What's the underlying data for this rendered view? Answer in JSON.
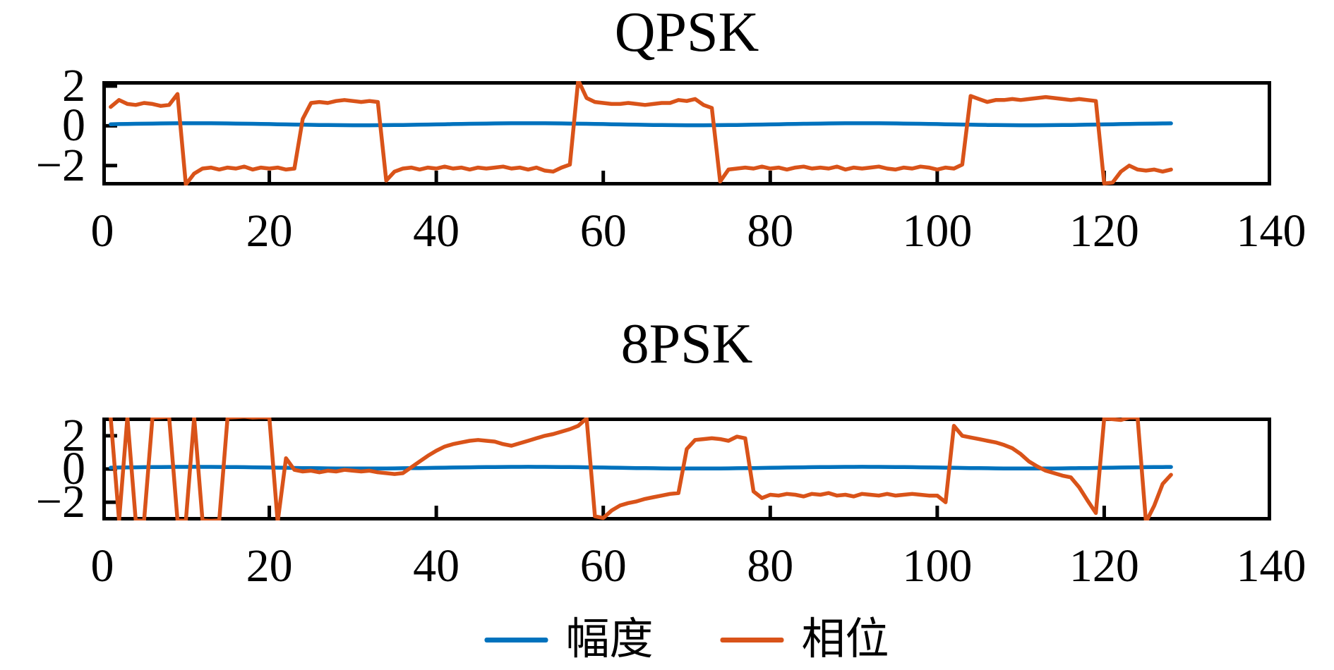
{
  "figure": {
    "background": "#ffffff",
    "axis_color": "#000000"
  },
  "legend": {
    "items": [
      {
        "label": "幅度",
        "color": "#0072BD"
      },
      {
        "label": "相位",
        "color": "#D95319"
      }
    ]
  },
  "chart_data": [
    {
      "type": "line",
      "title": "QPSK",
      "xlabel": "",
      "ylabel": "",
      "xlim": [
        0,
        140
      ],
      "ylim": [
        -3.0,
        2.25
      ],
      "xticks": [
        0,
        20,
        40,
        60,
        80,
        100,
        120,
        140
      ],
      "yticks": [
        2,
        0,
        -2
      ],
      "grid": false,
      "legend_position": "below-figure",
      "x_start": 1,
      "x_step": 1,
      "series": [
        {
          "name": "幅度",
          "color": "#0072BD",
          "values": [
            0.08,
            0.088,
            0.095,
            0.103,
            0.109,
            0.115,
            0.121,
            0.125,
            0.128,
            0.129,
            0.13,
            0.129,
            0.128,
            0.125,
            0.121,
            0.115,
            0.109,
            0.103,
            0.095,
            0.088,
            0.08,
            0.072,
            0.065,
            0.057,
            0.051,
            0.045,
            0.039,
            0.035,
            0.032,
            0.031,
            0.03,
            0.031,
            0.032,
            0.035,
            0.039,
            0.045,
            0.051,
            0.057,
            0.065,
            0.072,
            0.08,
            0.088,
            0.095,
            0.103,
            0.109,
            0.115,
            0.121,
            0.125,
            0.128,
            0.129,
            0.13,
            0.129,
            0.128,
            0.125,
            0.121,
            0.115,
            0.109,
            0.103,
            0.095,
            0.088,
            0.08,
            0.072,
            0.065,
            0.057,
            0.051,
            0.045,
            0.039,
            0.035,
            0.032,
            0.031,
            0.03,
            0.031,
            0.032,
            0.035,
            0.039,
            0.045,
            0.051,
            0.057,
            0.065,
            0.072,
            0.08,
            0.088,
            0.095,
            0.103,
            0.109,
            0.115,
            0.121,
            0.125,
            0.128,
            0.129,
            0.13,
            0.129,
            0.128,
            0.125,
            0.121,
            0.115,
            0.109,
            0.103,
            0.095,
            0.088,
            0.08,
            0.072,
            0.065,
            0.057,
            0.051,
            0.045,
            0.039,
            0.035,
            0.032,
            0.031,
            0.03,
            0.031,
            0.032,
            0.035,
            0.039,
            0.045,
            0.051,
            0.057,
            0.065,
            0.072,
            0.08,
            0.088,
            0.095,
            0.103,
            0.109,
            0.115,
            0.121,
            0.125
          ]
        },
        {
          "name": "相位",
          "color": "#D95319",
          "values": [
            0.95,
            1.3,
            1.1,
            1.05,
            1.15,
            1.1,
            1.0,
            1.05,
            1.6,
            -2.95,
            -2.4,
            -2.15,
            -2.1,
            -2.2,
            -2.1,
            -2.15,
            -2.05,
            -2.2,
            -2.1,
            -2.15,
            -2.1,
            -2.2,
            -2.15,
            0.35,
            1.15,
            1.2,
            1.15,
            1.25,
            1.3,
            1.25,
            1.2,
            1.25,
            1.2,
            -2.75,
            -2.3,
            -2.15,
            -2.1,
            -2.2,
            -2.1,
            -2.15,
            -2.05,
            -2.15,
            -2.1,
            -2.2,
            -2.1,
            -2.15,
            -2.1,
            -2.05,
            -2.15,
            -2.1,
            -2.2,
            -2.1,
            -2.25,
            -2.3,
            -2.1,
            -1.95,
            2.3,
            1.4,
            1.2,
            1.15,
            1.1,
            1.1,
            1.15,
            1.1,
            1.05,
            1.1,
            1.15,
            1.15,
            1.3,
            1.25,
            1.35,
            1.05,
            0.9,
            -2.8,
            -2.2,
            -2.15,
            -2.1,
            -2.15,
            -2.05,
            -2.15,
            -2.1,
            -2.2,
            -2.1,
            -2.05,
            -2.15,
            -2.1,
            -2.15,
            -2.05,
            -2.2,
            -2.1,
            -2.15,
            -2.1,
            -2.05,
            -2.15,
            -2.2,
            -2.1,
            -2.15,
            -2.05,
            -2.1,
            -2.2,
            -2.1,
            -2.15,
            -1.95,
            1.5,
            1.35,
            1.2,
            1.3,
            1.3,
            1.35,
            1.3,
            1.35,
            1.4,
            1.45,
            1.4,
            1.35,
            1.3,
            1.35,
            1.3,
            1.25,
            -2.9,
            -2.85,
            -2.3,
            -2.0,
            -2.2,
            -2.25,
            -2.2,
            -2.3,
            -2.2
          ]
        }
      ]
    },
    {
      "type": "line",
      "title": "8PSK",
      "xlabel": "",
      "ylabel": "",
      "xlim": [
        0,
        140
      ],
      "ylim": [
        -3.1,
        3.1
      ],
      "xticks": [
        0,
        20,
        40,
        60,
        80,
        100,
        120,
        140
      ],
      "yticks": [
        2,
        0,
        -2
      ],
      "grid": false,
      "legend_position": "below-figure",
      "x_start": 1,
      "x_step": 1,
      "series": [
        {
          "name": "幅度",
          "color": "#0072BD",
          "values": [
            0.08,
            0.088,
            0.095,
            0.103,
            0.109,
            0.115,
            0.121,
            0.125,
            0.128,
            0.129,
            0.13,
            0.129,
            0.128,
            0.125,
            0.121,
            0.115,
            0.109,
            0.103,
            0.095,
            0.088,
            0.08,
            0.072,
            0.065,
            0.057,
            0.051,
            0.045,
            0.039,
            0.035,
            0.032,
            0.031,
            0.03,
            0.031,
            0.032,
            0.035,
            0.039,
            0.045,
            0.051,
            0.057,
            0.065,
            0.072,
            0.08,
            0.088,
            0.095,
            0.103,
            0.109,
            0.115,
            0.121,
            0.125,
            0.128,
            0.129,
            0.13,
            0.129,
            0.128,
            0.125,
            0.121,
            0.115,
            0.109,
            0.103,
            0.095,
            0.088,
            0.08,
            0.072,
            0.065,
            0.057,
            0.051,
            0.045,
            0.039,
            0.035,
            0.032,
            0.031,
            0.03,
            0.031,
            0.032,
            0.035,
            0.039,
            0.045,
            0.051,
            0.057,
            0.065,
            0.072,
            0.08,
            0.088,
            0.095,
            0.103,
            0.109,
            0.115,
            0.121,
            0.125,
            0.128,
            0.129,
            0.13,
            0.129,
            0.128,
            0.125,
            0.121,
            0.115,
            0.109,
            0.103,
            0.095,
            0.088,
            0.08,
            0.072,
            0.065,
            0.057,
            0.051,
            0.045,
            0.039,
            0.035,
            0.032,
            0.031,
            0.03,
            0.031,
            0.032,
            0.035,
            0.039,
            0.045,
            0.051,
            0.057,
            0.065,
            0.072,
            0.08,
            0.088,
            0.095,
            0.103,
            0.109,
            0.115,
            0.121,
            0.125
          ]
        },
        {
          "name": "相位",
          "color": "#D95319",
          "values": [
            3.1,
            -3.1,
            3.12,
            -3.1,
            -3.12,
            3.1,
            3.12,
            3.15,
            -3.1,
            -3.12,
            3.1,
            -3.1,
            -3.12,
            -3.1,
            3.1,
            3.12,
            3.15,
            3.1,
            3.12,
            3.1,
            -3.2,
            0.65,
            -0.05,
            -0.15,
            -0.1,
            -0.2,
            -0.1,
            -0.15,
            -0.05,
            -0.1,
            -0.15,
            -0.1,
            -0.2,
            -0.25,
            -0.3,
            -0.25,
            0.1,
            0.45,
            0.8,
            1.1,
            1.35,
            1.5,
            1.6,
            1.7,
            1.75,
            1.7,
            1.65,
            1.5,
            1.4,
            1.55,
            1.7,
            1.85,
            2.0,
            2.1,
            2.25,
            2.4,
            2.6,
            3.05,
            -2.85,
            -2.95,
            -2.5,
            -2.2,
            -2.05,
            -1.95,
            -1.8,
            -1.7,
            -1.6,
            -1.5,
            -1.45,
            1.2,
            1.75,
            1.8,
            1.85,
            1.8,
            1.7,
            1.95,
            1.85,
            -1.35,
            -1.75,
            -1.55,
            -1.6,
            -1.5,
            -1.55,
            -1.65,
            -1.5,
            -1.55,
            -1.45,
            -1.6,
            -1.55,
            -1.65,
            -1.5,
            -1.55,
            -1.6,
            -1.5,
            -1.6,
            -1.55,
            -1.5,
            -1.55,
            -1.6,
            -1.6,
            -2.0,
            2.6,
            2.0,
            1.9,
            1.8,
            1.7,
            1.6,
            1.45,
            1.25,
            0.9,
            0.45,
            0.15,
            -0.1,
            -0.25,
            -0.4,
            -0.5,
            -1.1,
            -1.9,
            -2.65,
            3.05,
            3.0,
            2.95,
            3.1,
            3.1,
            -3.2,
            -2.2,
            -0.9,
            -0.35
          ]
        }
      ]
    }
  ]
}
